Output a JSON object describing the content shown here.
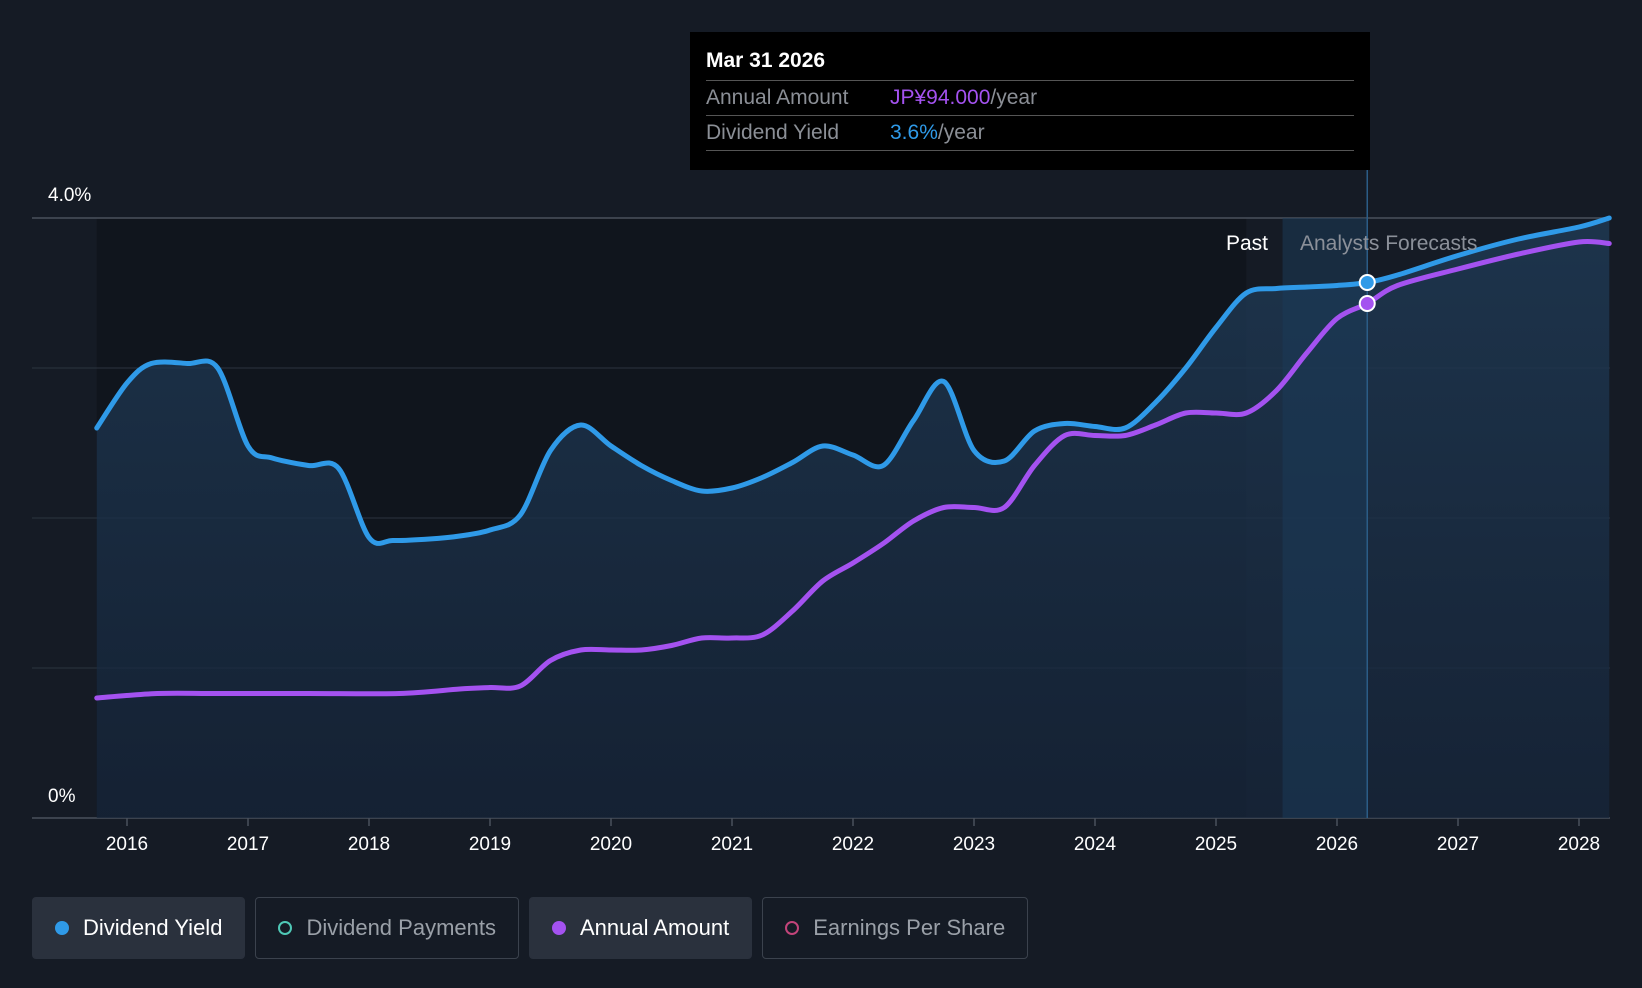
{
  "tooltip": {
    "date": "Mar 31 2026",
    "rows": [
      {
        "label": "Annual Amount",
        "value": "JP¥94.000",
        "unit": "/year"
      },
      {
        "label": "Dividend Yield",
        "value": "3.6%",
        "unit": "/year"
      }
    ]
  },
  "legend": [
    {
      "label": "Dividend Yield",
      "color": "#2f9ae8",
      "active": true,
      "filled": true
    },
    {
      "label": "Dividend Payments",
      "color": "#4fc9b7",
      "active": false,
      "filled": false
    },
    {
      "label": "Annual Amount",
      "color": "#a452f0",
      "active": true,
      "filled": true
    },
    {
      "label": "Earnings Per Share",
      "color": "#c2447a",
      "active": false,
      "filled": false
    }
  ],
  "chart_data": {
    "type": "line",
    "y_ticks": [
      "4.0%",
      "0%"
    ],
    "ylim": [
      0,
      4.0
    ],
    "xlim": [
      2015.75,
      2028.25
    ],
    "x_tick_labels": [
      "2016",
      "2017",
      "2018",
      "2019",
      "2020",
      "2021",
      "2022",
      "2023",
      "2024",
      "2025",
      "2026",
      "2027",
      "2028"
    ],
    "region_labels": {
      "past": "Past",
      "forecast": "Analysts Forecasts"
    },
    "past_end": 2025.25,
    "forecast_start": 2025.55,
    "highlight_x": 2026.25,
    "grid": true,
    "colors": {
      "yield": "#2f9ae8",
      "amount": "#a452f0"
    },
    "series": [
      {
        "name": "Dividend Yield",
        "x": [
          2015.75,
          2016.0,
          2016.2,
          2016.5,
          2016.75,
          2017.0,
          2017.2,
          2017.5,
          2017.75,
          2018.0,
          2018.2,
          2018.5,
          2018.75,
          2019.0,
          2019.25,
          2019.5,
          2019.75,
          2020.0,
          2020.25,
          2020.5,
          2020.75,
          2021.0,
          2021.25,
          2021.5,
          2021.75,
          2022.0,
          2022.25,
          2022.5,
          2022.75,
          2023.0,
          2023.25,
          2023.5,
          2023.75,
          2024.0,
          2024.25,
          2024.5,
          2024.75,
          2025.0,
          2025.25,
          2025.5,
          2025.75,
          2026.0,
          2026.25,
          2026.5,
          2027.0,
          2027.5,
          2028.0,
          2028.25
        ],
        "values": [
          2.6,
          2.9,
          3.03,
          3.03,
          3.0,
          2.48,
          2.4,
          2.35,
          2.33,
          1.87,
          1.85,
          1.86,
          1.88,
          1.92,
          2.02,
          2.45,
          2.62,
          2.48,
          2.35,
          2.25,
          2.18,
          2.2,
          2.27,
          2.37,
          2.48,
          2.42,
          2.35,
          2.65,
          2.91,
          2.45,
          2.38,
          2.58,
          2.63,
          2.61,
          2.6,
          2.77,
          3.0,
          3.27,
          3.5,
          3.53,
          3.54,
          3.55,
          3.57,
          3.62,
          3.75,
          3.86,
          3.94,
          4.0
        ]
      },
      {
        "name": "Annual Amount",
        "x": [
          2015.75,
          2016.25,
          2016.75,
          2017.5,
          2018.25,
          2018.75,
          2019.0,
          2019.25,
          2019.5,
          2019.75,
          2020.0,
          2020.25,
          2020.5,
          2020.75,
          2021.0,
          2021.25,
          2021.5,
          2021.75,
          2022.0,
          2022.25,
          2022.5,
          2022.75,
          2023.0,
          2023.25,
          2023.5,
          2023.75,
          2024.0,
          2024.25,
          2024.5,
          2024.75,
          2025.0,
          2025.25,
          2025.5,
          2025.75,
          2026.0,
          2026.25,
          2026.5,
          2027.0,
          2027.5,
          2028.0,
          2028.25
        ],
        "values": [
          0.8,
          0.83,
          0.83,
          0.83,
          0.83,
          0.86,
          0.87,
          0.88,
          1.05,
          1.12,
          1.12,
          1.12,
          1.15,
          1.2,
          1.2,
          1.22,
          1.38,
          1.58,
          1.7,
          1.83,
          1.98,
          2.07,
          2.07,
          2.07,
          2.35,
          2.55,
          2.55,
          2.55,
          2.62,
          2.7,
          2.7,
          2.7,
          2.85,
          3.1,
          3.33,
          3.43,
          3.55,
          3.66,
          3.76,
          3.84,
          3.83
        ]
      }
    ]
  }
}
